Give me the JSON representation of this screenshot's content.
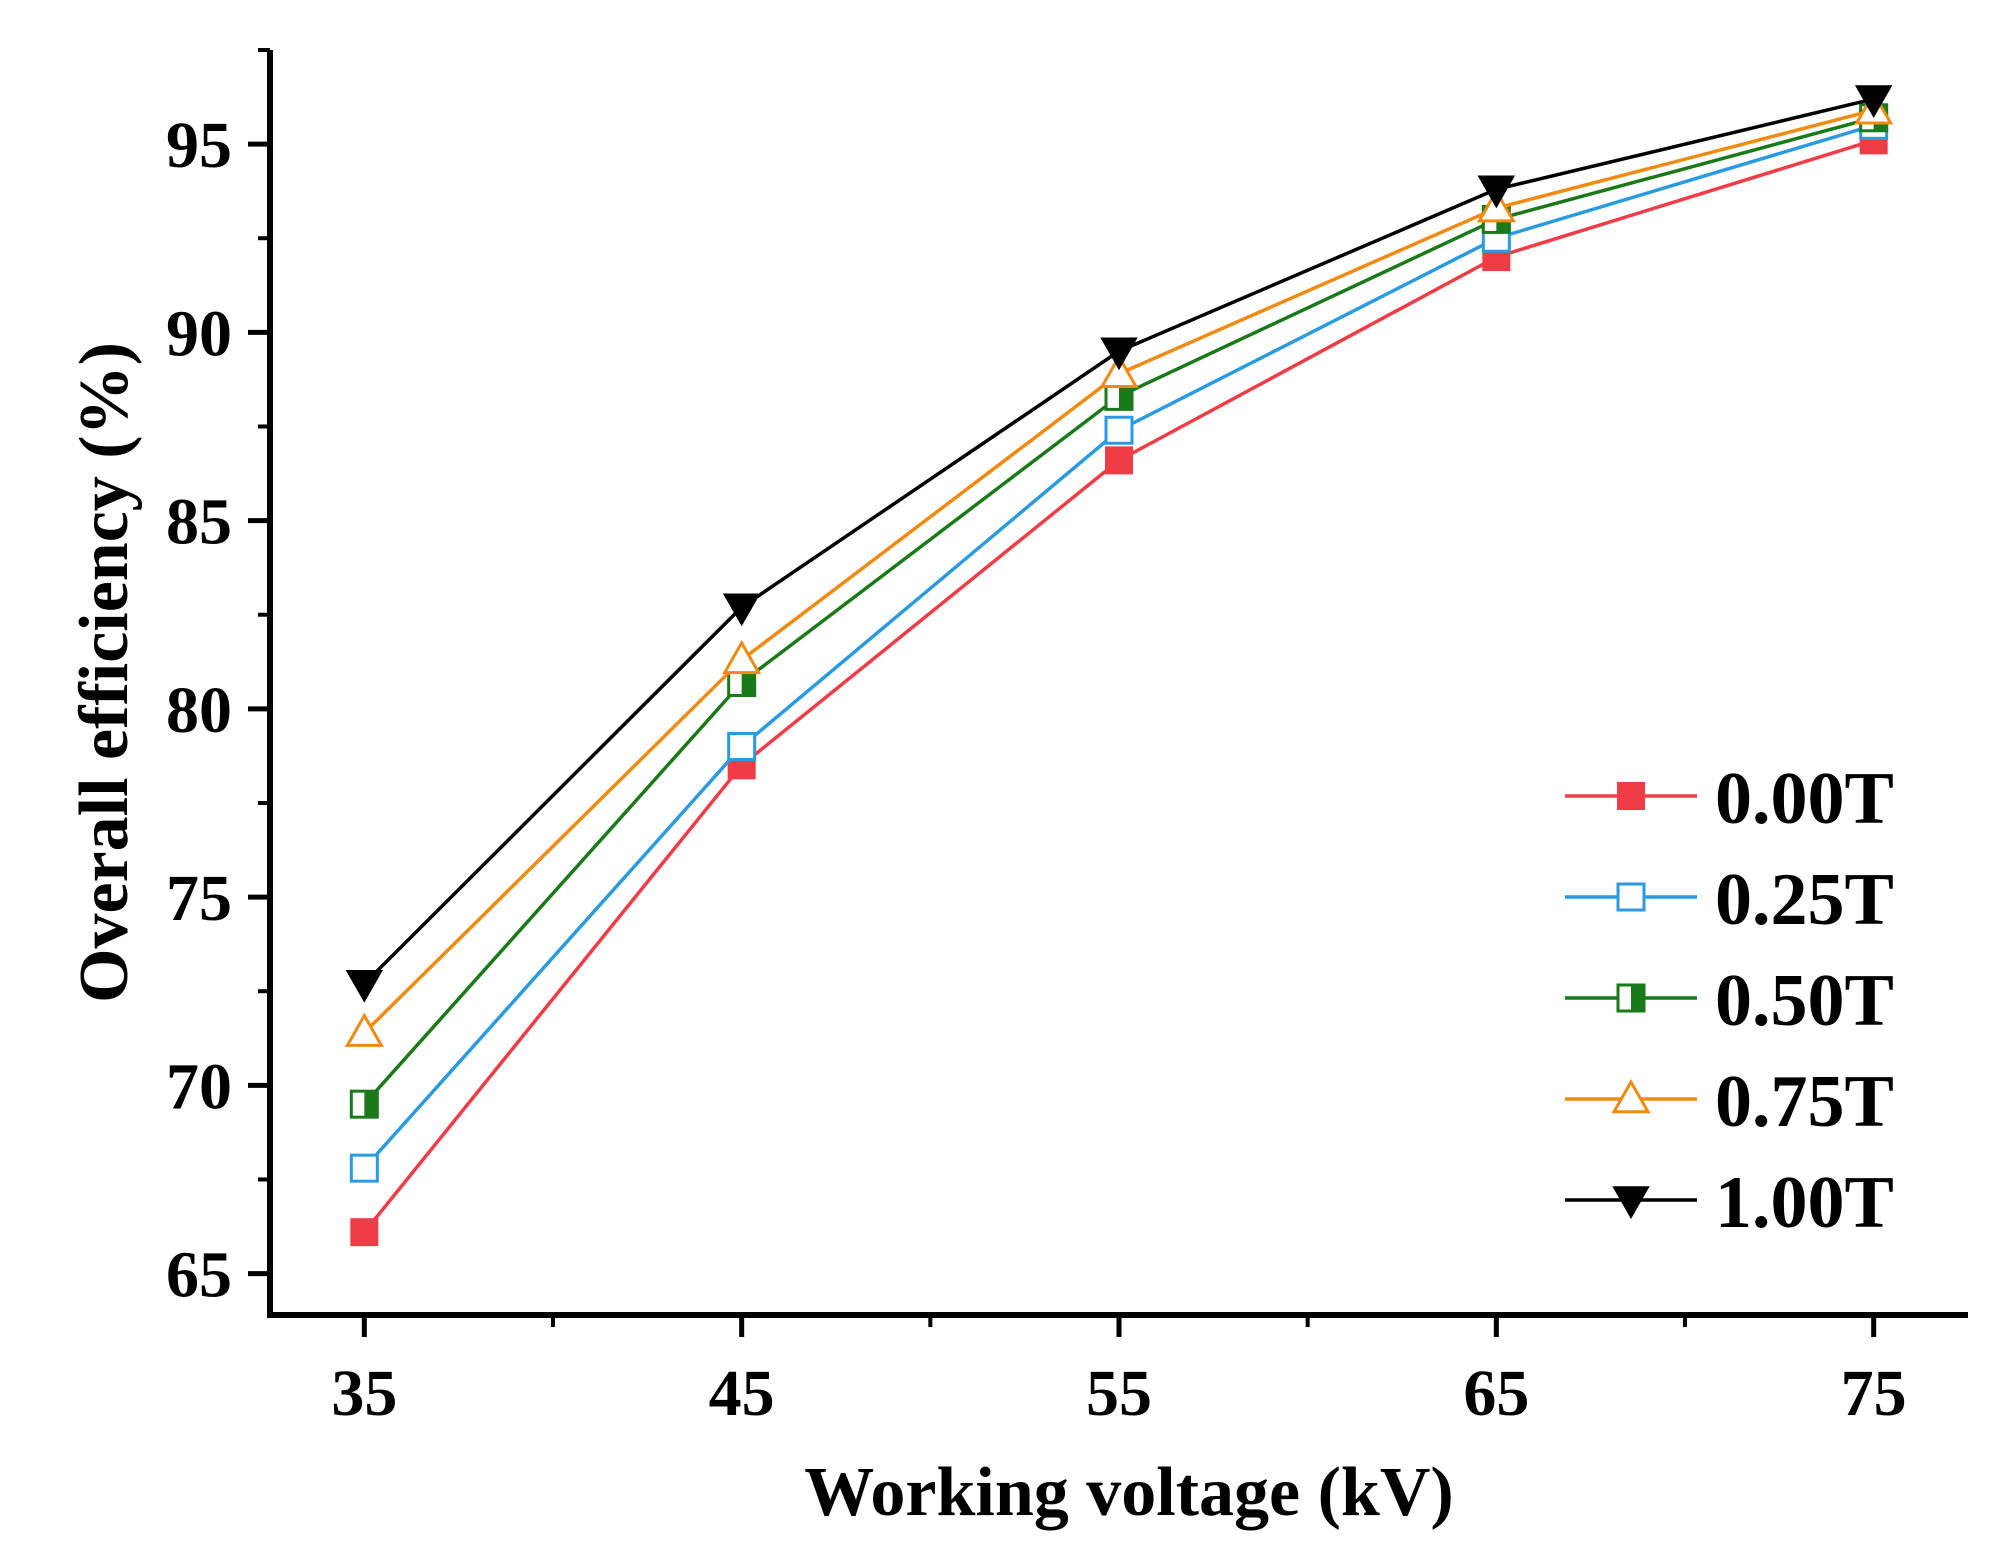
{
  "chart_data": {
    "type": "line",
    "xlabel": "Working voltage (kV)",
    "ylabel": "Overall efficiency (%)",
    "xlim": [
      32.5,
      77.5
    ],
    "ylim": [
      63.9,
      97.5
    ],
    "x": [
      35,
      45,
      55,
      65,
      75
    ],
    "x_ticks": [
      {
        "value": 35,
        "label": "35"
      },
      {
        "value": 45,
        "label": "45"
      },
      {
        "value": 55,
        "label": "55"
      },
      {
        "value": 65,
        "label": "65"
      },
      {
        "value": 75,
        "label": "75"
      }
    ],
    "y_ticks": [
      {
        "value": 65,
        "label": "65"
      },
      {
        "value": 70,
        "label": "70"
      },
      {
        "value": 75,
        "label": "75"
      },
      {
        "value": 80,
        "label": "80"
      },
      {
        "value": 85,
        "label": "85"
      },
      {
        "value": 90,
        "label": "90"
      },
      {
        "value": 95,
        "label": "95"
      }
    ],
    "grid": false,
    "legend_position": "bottom-right",
    "series": [
      {
        "name": "0.00T",
        "color": "#f03c46",
        "marker": "filled-square",
        "values": [
          66.1,
          78.5,
          86.6,
          92.0,
          95.1
        ]
      },
      {
        "name": "0.25T",
        "color": "#2a9be0",
        "marker": "open-square",
        "values": [
          67.8,
          79.0,
          87.4,
          92.5,
          95.5
        ]
      },
      {
        "name": "0.50T",
        "color": "#1a7a1a",
        "marker": "half-filled-square",
        "values": [
          69.5,
          80.7,
          88.3,
          93.0,
          95.7
        ]
      },
      {
        "name": "0.75T",
        "color": "#f08a10",
        "marker": "open-triangle-up",
        "values": [
          71.4,
          81.3,
          88.9,
          93.3,
          95.9
        ]
      },
      {
        "name": "1.00T",
        "color": "#000000",
        "marker": "filled-triangle-down",
        "values": [
          72.7,
          82.7,
          89.5,
          93.8,
          96.2
        ]
      }
    ]
  }
}
